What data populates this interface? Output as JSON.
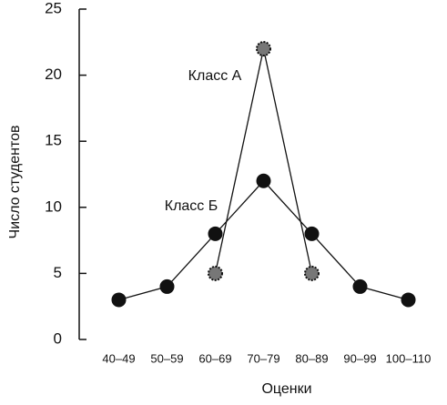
{
  "chart_data": {
    "type": "line",
    "xlabel": "Оценки",
    "ylabel": "Число студентов",
    "categories": [
      "40–49",
      "50–59",
      "60–69",
      "70–79",
      "80–89",
      "90–99",
      "100–110"
    ],
    "series": [
      {
        "name": "Класс А",
        "color": "#777777",
        "values": [
          null,
          null,
          5,
          22,
          5,
          null,
          null
        ]
      },
      {
        "name": "Класс Б",
        "color": "#111111",
        "values": [
          3,
          4,
          8,
          12,
          8,
          4,
          3
        ]
      }
    ],
    "ylim": [
      0,
      25
    ],
    "yticks": [
      0,
      5,
      10,
      15,
      20,
      25
    ]
  }
}
